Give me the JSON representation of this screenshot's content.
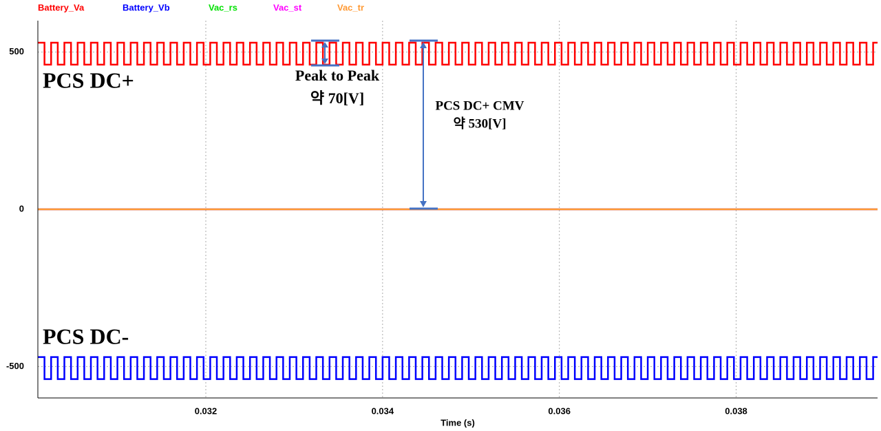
{
  "chart_data": {
    "type": "step",
    "xlabel": "Time (s)",
    "xlim": [
      0.0301,
      0.0396
    ],
    "xticks": [
      0.032,
      0.034,
      0.036,
      0.038
    ],
    "ylim": [
      -600,
      600
    ],
    "yticks": [
      500,
      0,
      -500
    ],
    "grid": true,
    "x": [
      0.0301,
      0.030175,
      0.03025,
      0.030325,
      0.0304,
      0.030475,
      0.03055,
      0.030625,
      0.0307,
      0.030775,
      0.03085,
      0.030925,
      0.031,
      0.031075,
      0.03115,
      0.031225,
      0.0313,
      0.031375,
      0.03145,
      0.031525,
      0.0316,
      0.031675,
      0.03175,
      0.031825,
      0.0319,
      0.031975,
      0.03205,
      0.032125,
      0.0322,
      0.032275,
      0.03235,
      0.032425,
      0.0325,
      0.032575,
      0.03265,
      0.032725,
      0.0328,
      0.032875,
      0.03295,
      0.033025,
      0.0331,
      0.033175,
      0.03325,
      0.033325,
      0.0334,
      0.033475,
      0.03355,
      0.033625,
      0.0337,
      0.033775,
      0.03385,
      0.033925,
      0.034,
      0.034075,
      0.03415,
      0.034225,
      0.0343,
      0.034375,
      0.03445,
      0.034525,
      0.0346,
      0.034675,
      0.03475,
      0.034825,
      0.0349,
      0.034975,
      0.03505,
      0.035125,
      0.0352,
      0.035275,
      0.03535,
      0.035425,
      0.0355,
      0.035575,
      0.03565,
      0.035725,
      0.0358,
      0.035875,
      0.03595,
      0.036025,
      0.0361,
      0.036175,
      0.03625,
      0.036325,
      0.0364,
      0.036475,
      0.03655,
      0.036625,
      0.0367,
      0.036775,
      0.03685,
      0.036925,
      0.037,
      0.037075,
      0.03715,
      0.037225,
      0.0373,
      0.037375,
      0.03745,
      0.037525,
      0.0376,
      0.037675,
      0.03775,
      0.037825,
      0.0379,
      0.037975,
      0.03805,
      0.038125,
      0.0382,
      0.038275,
      0.03835,
      0.038425,
      0.0385,
      0.038575,
      0.03865,
      0.038725,
      0.0388,
      0.038875,
      0.03895,
      0.039025,
      0.0391,
      0.039175,
      0.03925,
      0.039325,
      0.0394,
      0.039475,
      0.03955
    ],
    "series": [
      {
        "name": "Battery_Va",
        "color": "#ff0000",
        "values": [
          530,
          460,
          530,
          460,
          530,
          460,
          530,
          460,
          530,
          460,
          530,
          460,
          530,
          460,
          530,
          460,
          530,
          460,
          530,
          460,
          530,
          460,
          530,
          460,
          530,
          460,
          530,
          460,
          530,
          460,
          530,
          460,
          530,
          460,
          530,
          460,
          530,
          460,
          530,
          460,
          530,
          460,
          530,
          460,
          530,
          460,
          530,
          460,
          530,
          460,
          530,
          460,
          530,
          460,
          530,
          460,
          530,
          460,
          530,
          460,
          530,
          460,
          530,
          460,
          530,
          460,
          530,
          460,
          530,
          460,
          530,
          460,
          530,
          460,
          530,
          460,
          530,
          460,
          530,
          460,
          530,
          460,
          530,
          460,
          530,
          460,
          530,
          460,
          530,
          460,
          530,
          460,
          530,
          460,
          530,
          460,
          530,
          460,
          530,
          460,
          530,
          460,
          530,
          460,
          530,
          460,
          530,
          460,
          530,
          460,
          530,
          460,
          530,
          460,
          530,
          460,
          530,
          460,
          530,
          460,
          530,
          460,
          530,
          460,
          530,
          460,
          530
        ]
      },
      {
        "name": "Battery_Vb",
        "color": "#0000ff",
        "values": [
          -470,
          -540,
          -470,
          -540,
          -470,
          -540,
          -470,
          -540,
          -470,
          -540,
          -470,
          -540,
          -470,
          -540,
          -470,
          -540,
          -470,
          -540,
          -470,
          -540,
          -470,
          -540,
          -470,
          -540,
          -470,
          -540,
          -470,
          -540,
          -470,
          -540,
          -470,
          -540,
          -470,
          -540,
          -470,
          -540,
          -470,
          -540,
          -470,
          -540,
          -470,
          -540,
          -470,
          -540,
          -470,
          -540,
          -470,
          -540,
          -470,
          -540,
          -470,
          -540,
          -470,
          -540,
          -470,
          -540,
          -470,
          -540,
          -470,
          -540,
          -470,
          -540,
          -470,
          -540,
          -470,
          -540,
          -470,
          -540,
          -470,
          -540,
          -470,
          -540,
          -470,
          -540,
          -470,
          -540,
          -470,
          -540,
          -470,
          -540,
          -470,
          -540,
          -470,
          -540,
          -470,
          -540,
          -470,
          -540,
          -470,
          -540,
          -470,
          -540,
          -470,
          -540,
          -470,
          -540,
          -470,
          -540,
          -470,
          -540,
          -470,
          -540,
          -470,
          -540,
          -470,
          -540,
          -470,
          -540,
          -470,
          -540,
          -470,
          -540,
          -470,
          -540,
          -470,
          -540,
          -470,
          -540,
          -470,
          -540,
          -470,
          -540,
          -470,
          -540,
          -470,
          -540,
          -470
        ]
      },
      {
        "name": "Vac_rs",
        "color": "#00e000",
        "x": [
          0.0301,
          0.0396
        ],
        "values": [
          0,
          0
        ]
      },
      {
        "name": "Vac_st",
        "color": "#ff00ff",
        "x": [
          0.0301,
          0.0396
        ],
        "values": [
          0,
          0
        ]
      },
      {
        "name": "Vac_tr",
        "color": "#ff9933",
        "x": [
          0.0301,
          0.0396
        ],
        "values": [
          0,
          0
        ]
      }
    ],
    "annotations": [
      "PCS DC+",
      "PCS DC-",
      "Peak to Peak",
      "약 70[V]",
      "PCS DC+ CMV",
      "약 530[V]"
    ]
  }
}
